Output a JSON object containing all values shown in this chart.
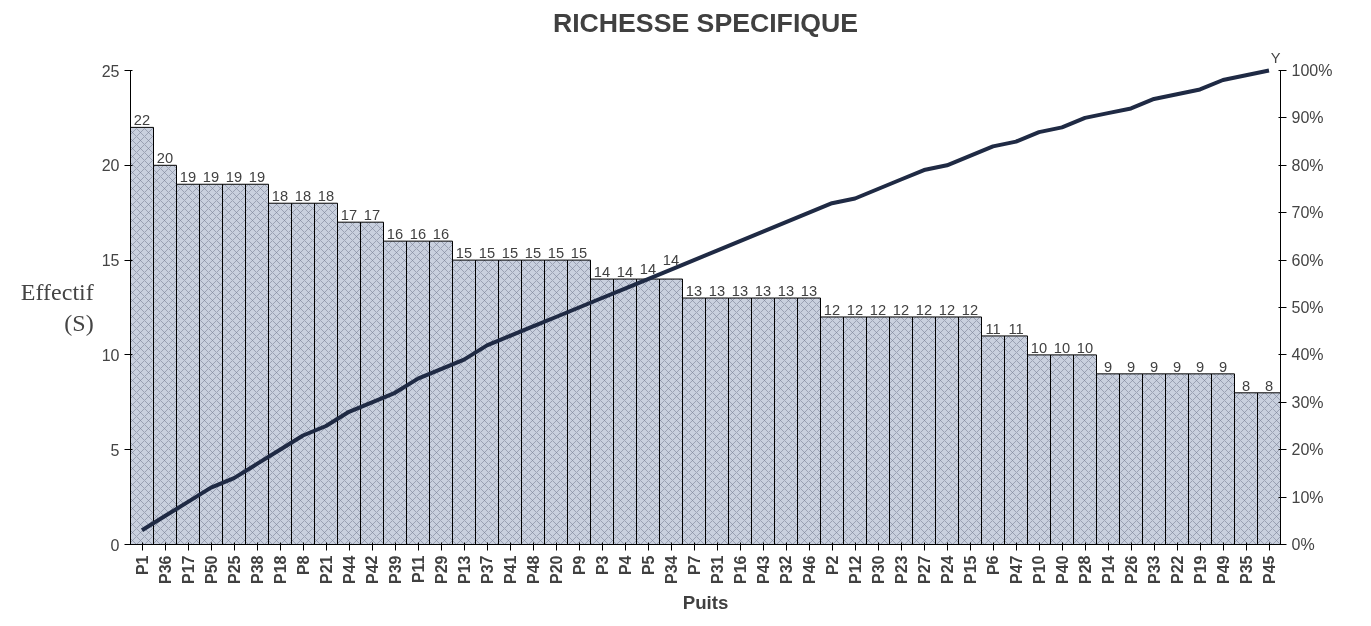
{
  "chart_data": {
    "type": "bar",
    "title": "RICHESSE SPECIFIQUE",
    "xlabel": "Puits",
    "ylabel": "Effectif (S)",
    "categories": [
      "P1",
      "P36",
      "P17",
      "P50",
      "P25",
      "P38",
      "P18",
      "P8",
      "P21",
      "P44",
      "P42",
      "P39",
      "P11",
      "P29",
      "P13",
      "P37",
      "P41",
      "P48",
      "P20",
      "P9",
      "P3",
      "P4",
      "P5",
      "P34",
      "P7",
      "P31",
      "P16",
      "P43",
      "P32",
      "P46",
      "P2",
      "P12",
      "P30",
      "P23",
      "P27",
      "P24",
      "P15",
      "P6",
      "P47",
      "P10",
      "P40",
      "P28",
      "P14",
      "P26",
      "P33",
      "P22",
      "P19",
      "P49",
      "P35",
      "P45"
    ],
    "series": [
      {
        "color": "#c9d0de",
        "values": [
          22,
          20,
          19,
          19,
          19,
          19,
          18,
          18,
          18,
          17,
          17,
          16,
          16,
          16,
          15,
          15,
          15,
          15,
          15,
          15,
          14,
          14,
          14,
          14,
          13,
          13,
          13,
          13,
          13,
          13,
          12,
          12,
          12,
          12,
          12,
          12,
          12,
          11,
          11,
          10,
          10,
          10,
          9,
          9,
          9,
          9,
          9,
          9,
          8,
          8
        ],
        "value_labels": [
          "22",
          "20",
          "19",
          "19",
          "19",
          "19",
          "18",
          "18",
          "18",
          "17",
          "17",
          "16",
          "16",
          "16",
          "15",
          "15",
          "15",
          "15",
          "15",
          "15",
          "14",
          "14",
          "14",
          "14",
          "13",
          "13",
          "13",
          "13",
          "13",
          "13",
          "12",
          "12",
          "12",
          "12",
          "12",
          "12",
          "12",
          "11",
          "11",
          "10",
          "10",
          "10",
          "9",
          "9",
          "9",
          "9",
          "9",
          "9",
          "8",
          "8"
        ]
      },
      {
        "type": "line",
        "axis": "y2",
        "color": "#1f2a44",
        "values": [
          3,
          6,
          9,
          12,
          14,
          17,
          20,
          23,
          25,
          28,
          30,
          32,
          35,
          37,
          39,
          42,
          44,
          46,
          48,
          50,
          52,
          54,
          56,
          58,
          60,
          62,
          64,
          66,
          68,
          70,
          72,
          73,
          75,
          77,
          79,
          80,
          82,
          84,
          85,
          87,
          88,
          90,
          91,
          92,
          94,
          95,
          96,
          98,
          99,
          100
        ]
      }
    ],
    "ylim": [
      0,
      25
    ],
    "yticks": [
      0,
      5,
      10,
      15,
      20,
      25
    ],
    "y2lim": [
      0,
      100
    ],
    "y2ticks": [
      {
        "value": 0,
        "label": "0%"
      },
      {
        "value": 10,
        "label": "10%"
      },
      {
        "value": 20,
        "label": "20%"
      },
      {
        "value": 30,
        "label": "30%"
      },
      {
        "value": 40,
        "label": "40%"
      },
      {
        "value": 50,
        "label": "50%"
      },
      {
        "value": 60,
        "label": "60%"
      },
      {
        "value": 70,
        "label": "70%"
      },
      {
        "value": 80,
        "label": "80%"
      },
      {
        "value": 90,
        "label": "90%"
      },
      {
        "value": 100,
        "label": "100%"
      }
    ],
    "grid": false,
    "annotations": [
      "Y"
    ]
  }
}
